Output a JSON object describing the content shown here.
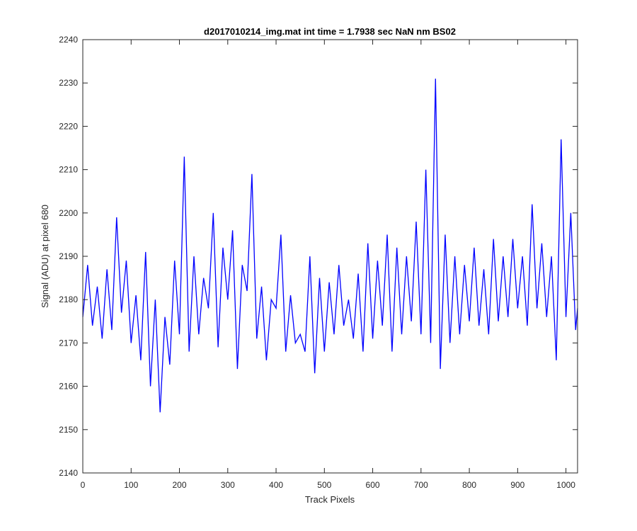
{
  "chart_data": {
    "type": "line",
    "title": "d2017010214_img.mat int time = 1.7938 sec  NaN nm BS02",
    "xlabel": "Track Pixels",
    "ylabel": "Signal (ADU) at pixel 680",
    "xlim": [
      0,
      1024
    ],
    "ylim": [
      2140,
      2240
    ],
    "xticks": [
      0,
      100,
      200,
      300,
      400,
      500,
      600,
      700,
      800,
      900,
      1000
    ],
    "yticks": [
      2140,
      2150,
      2160,
      2170,
      2180,
      2190,
      2200,
      2210,
      2220,
      2230,
      2240
    ],
    "grid": false,
    "line_color": "#0000ff",
    "series": [
      {
        "x": [
          0,
          10,
          20,
          30,
          40,
          50,
          60,
          70,
          80,
          90,
          100,
          110,
          120,
          130,
          140,
          150,
          160,
          170,
          180,
          190,
          200,
          210,
          220,
          230,
          240,
          250,
          260,
          270,
          280,
          290,
          300,
          310,
          320,
          330,
          340,
          350,
          360,
          370,
          380,
          390,
          400,
          410,
          420,
          430,
          440,
          450,
          460,
          470,
          480,
          490,
          500,
          510,
          520,
          530,
          540,
          550,
          560,
          570,
          580,
          590,
          600,
          610,
          620,
          630,
          640,
          650,
          660,
          670,
          680,
          690,
          700,
          710,
          720,
          730,
          740,
          750,
          760,
          770,
          780,
          790,
          800,
          810,
          820,
          830,
          840,
          850,
          860,
          870,
          880,
          890,
          900,
          910,
          920,
          930,
          940,
          950,
          960,
          970,
          980,
          990,
          1000,
          1010,
          1020,
          1024
        ],
        "y": [
          2176,
          2188,
          2174,
          2183,
          2171,
          2187,
          2173,
          2199,
          2177,
          2189,
          2170,
          2181,
          2166,
          2191,
          2160,
          2180,
          2154,
          2176,
          2165,
          2189,
          2172,
          2213,
          2168,
          2190,
          2172,
          2185,
          2178,
          2200,
          2169,
          2192,
          2180,
          2196,
          2164,
          2188,
          2182,
          2209,
          2171,
          2183,
          2166,
          2180,
          2178,
          2195,
          2168,
          2181,
          2170,
          2172,
          2168,
          2190,
          2163,
          2185,
          2168,
          2184,
          2172,
          2188,
          2174,
          2180,
          2171,
          2186,
          2168,
          2193,
          2171,
          2189,
          2174,
          2195,
          2168,
          2192,
          2172,
          2190,
          2175,
          2198,
          2172,
          2210,
          2170,
          2231,
          2164,
          2195,
          2170,
          2190,
          2172,
          2188,
          2175,
          2192,
          2174,
          2187,
          2172,
          2194,
          2175,
          2190,
          2176,
          2194,
          2178,
          2190,
          2174,
          2202,
          2178,
          2193,
          2176,
          2190,
          2166,
          2217,
          2176,
          2200,
          2173,
          2178
        ]
      }
    ]
  }
}
